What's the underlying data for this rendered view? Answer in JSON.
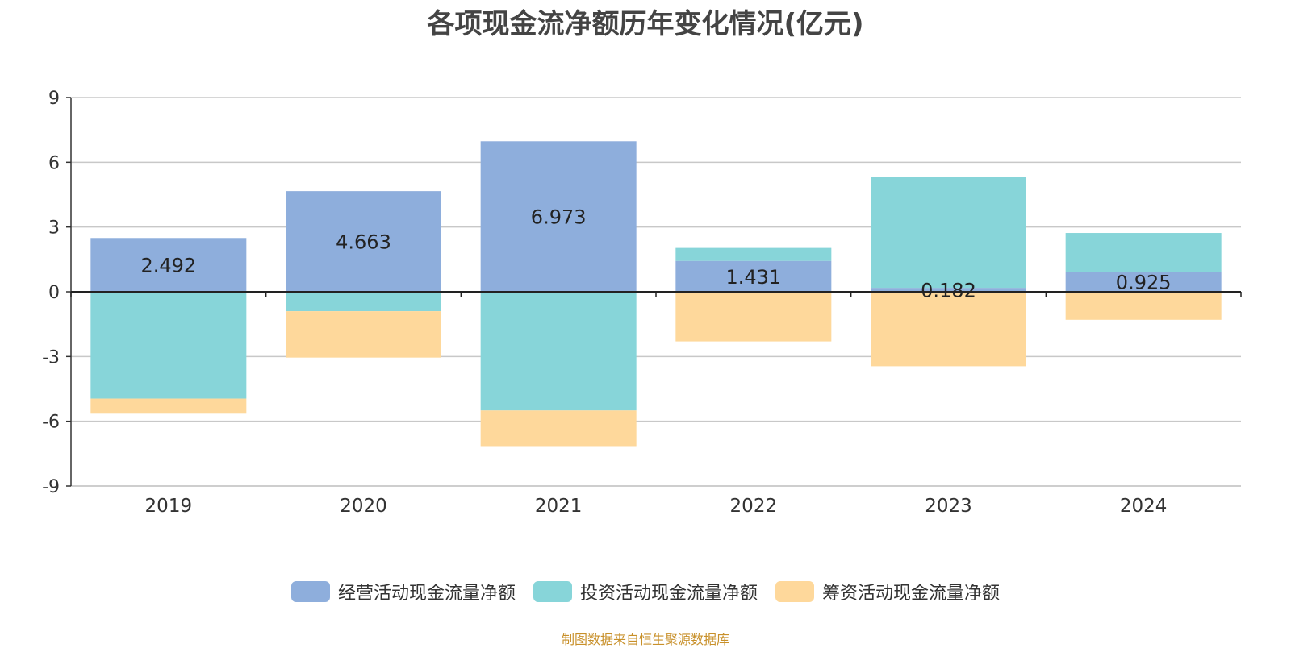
{
  "chart_data": {
    "type": "bar",
    "stacked": true,
    "title": "各项现金流净额历年变化情况(亿元)",
    "categories": [
      "2019",
      "2020",
      "2021",
      "2022",
      "2023",
      "2024"
    ],
    "series": [
      {
        "name": "经营活动现金流量净额",
        "color": "#8eaedc",
        "values": [
          2.492,
          4.663,
          6.973,
          1.431,
          0.182,
          0.925
        ],
        "labels": [
          "2.492",
          "4.663",
          "6.973",
          "1.431",
          "0.182",
          "0.925"
        ]
      },
      {
        "name": "投资活动现金流量净额",
        "color": "#87d5d9",
        "values": [
          -4.95,
          -0.9,
          -5.5,
          0.6,
          5.15,
          1.8
        ]
      },
      {
        "name": "筹资活动现金流量净额",
        "color": "#fed89b",
        "values": [
          -0.7,
          -2.15,
          -1.65,
          -2.3,
          -3.45,
          -1.3
        ]
      }
    ],
    "yticks": [
      9,
      6,
      3,
      0,
      -3,
      -6,
      -9
    ],
    "ylim": [
      -9,
      9
    ],
    "grid": true,
    "legend_position": "bottom"
  },
  "source_note": "制图数据来自恒生聚源数据库"
}
